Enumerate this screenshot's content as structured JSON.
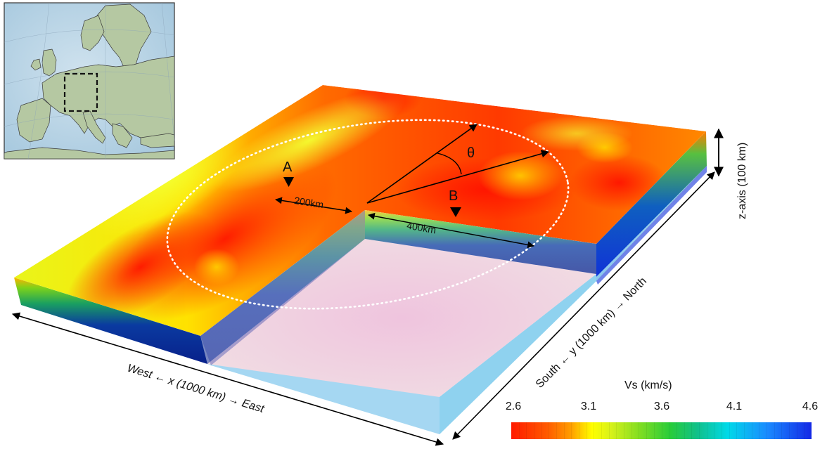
{
  "labels": {
    "point_a": "A",
    "point_b": "B",
    "theta": "θ",
    "dist_200": "200km",
    "dist_400": "400km",
    "x_axis": "West ← x (1000 km) → East",
    "y_axis": "South ← y (1000 km) → North",
    "z_axis": "z-axis (100 km)"
  },
  "colorbar": {
    "title": "Vs (km/s)",
    "ticks": [
      "2.6",
      "3.1",
      "3.6",
      "4.1",
      "4.6"
    ],
    "min": 2.6,
    "max": 4.6,
    "colors": [
      "#ff1a00",
      "#ffff00",
      "#28cc3a",
      "#00d9e8",
      "#1428e6"
    ]
  },
  "inset_map": {
    "region": "Europe",
    "highlight": "dashed-box"
  }
}
